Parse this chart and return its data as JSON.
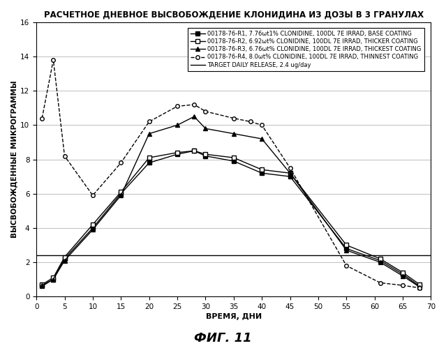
{
  "title": "РАСЧЕТНОЕ ДНЕВНОЕ ВЫСВОБОЖДЕНИЕ КЛОНИДИНА ИЗ ДОЗЫ В 3 ГРАНУЛАХ",
  "xlabel": "ВРЕМЯ, ДНИ",
  "ylabel": "ВЫСВОБОЖДЕННЫЕ МИКРОГРАММЫ",
  "fig_label": "ФИГ. 11",
  "xlim": [
    0,
    70
  ],
  "ylim": [
    0,
    16
  ],
  "yticks": [
    0,
    2,
    4,
    6,
    8,
    10,
    12,
    14,
    16
  ],
  "xticks": [
    0,
    5,
    10,
    15,
    20,
    25,
    30,
    35,
    40,
    45,
    50,
    55,
    60,
    65,
    70
  ],
  "target_y": 2.4,
  "r1_x": [
    1,
    3,
    5,
    10,
    15,
    20,
    25,
    28,
    30,
    35,
    40,
    45,
    55,
    61,
    65,
    68
  ],
  "r1_y": [
    0.6,
    1.0,
    2.2,
    4.0,
    6.0,
    7.8,
    8.3,
    8.5,
    8.2,
    7.9,
    7.2,
    7.0,
    2.8,
    2.1,
    1.3,
    0.6
  ],
  "r2_x": [
    1,
    3,
    5,
    10,
    15,
    20,
    25,
    28,
    30,
    35,
    40,
    45,
    55,
    61,
    65,
    68
  ],
  "r2_y": [
    0.7,
    1.1,
    2.3,
    4.2,
    6.1,
    8.1,
    8.4,
    8.5,
    8.3,
    8.1,
    7.4,
    7.2,
    3.0,
    2.2,
    1.4,
    0.7
  ],
  "r3_x": [
    1,
    3,
    5,
    10,
    15,
    20,
    25,
    28,
    30,
    35,
    40,
    45,
    55,
    61,
    65,
    68
  ],
  "r3_y": [
    0.65,
    1.0,
    2.1,
    3.9,
    5.9,
    9.5,
    10.0,
    10.5,
    9.8,
    9.5,
    9.2,
    7.2,
    2.7,
    2.0,
    1.2,
    0.55
  ],
  "r4_x": [
    1,
    3,
    5,
    10,
    15,
    20,
    25,
    28,
    30,
    35,
    38,
    40,
    45,
    55,
    61,
    65,
    68
  ],
  "r4_y": [
    10.4,
    13.8,
    8.2,
    5.9,
    7.8,
    10.2,
    11.1,
    11.2,
    10.8,
    10.4,
    10.2,
    10.0,
    7.5,
    1.8,
    0.8,
    0.65,
    0.5
  ],
  "legend_labels": [
    "00178-76-R1, 7.76wt1% CLONIDINE, 100DL 7E IRRAD, BASE COATING",
    "00178-76-R2, 6.92wt% CLONIDINE, 100DL 7E IRRAD, THICKER COATING",
    "00178-76-R3, 6.76wt% CLONIDINE, 100DL 7E IRRAD, THICKEST COATING",
    "00178-76-R4, 8.0wt% CLONIDINE, 100DL 7E IRRAD, THINNEST COATING",
    "TARGET DAILY RELEASE, 2.4 ug/day"
  ]
}
